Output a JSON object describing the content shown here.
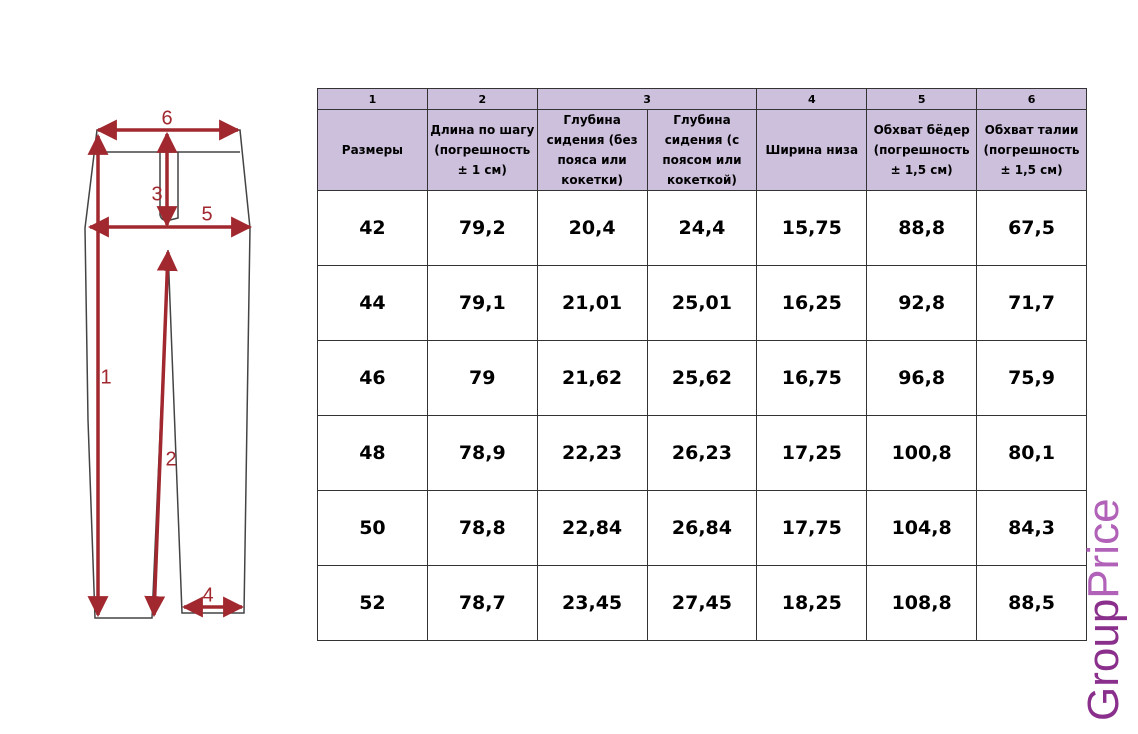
{
  "diagram": {
    "labels": [
      "1",
      "2",
      "3",
      "4",
      "5",
      "6"
    ]
  },
  "table": {
    "numbers": [
      "1",
      "2",
      "3",
      "4",
      "5",
      "6"
    ],
    "headers": [
      "Размеры",
      "Длина по шагу (погрешность ± 1 см)",
      "Глубина сидения (без пояса или кокетки)",
      "Глубина сидения (с поясом или кокеткой)",
      "Ширина низа",
      "Обхват бёдер (погрешность ± 1,5 см)",
      "Обхват талии (погрешность ± 1,5 см)"
    ],
    "rows": [
      [
        "42",
        "79,2",
        "20,4",
        "24,4",
        "15,75",
        "88,8",
        "67,5"
      ],
      [
        "44",
        "79,1",
        "21,01",
        "25,01",
        "16,25",
        "92,8",
        "71,7"
      ],
      [
        "46",
        "79",
        "21,62",
        "25,62",
        "16,75",
        "96,8",
        "75,9"
      ],
      [
        "48",
        "78,9",
        "22,23",
        "26,23",
        "17,25",
        "100,8",
        "80,1"
      ],
      [
        "50",
        "78,8",
        "22,84",
        "26,84",
        "17,75",
        "104,8",
        "84,3"
      ],
      [
        "52",
        "78,7",
        "23,45",
        "27,45",
        "18,25",
        "108,8",
        "88,5"
      ]
    ]
  },
  "watermark": {
    "part1": "Group",
    "part2": "Price"
  }
}
